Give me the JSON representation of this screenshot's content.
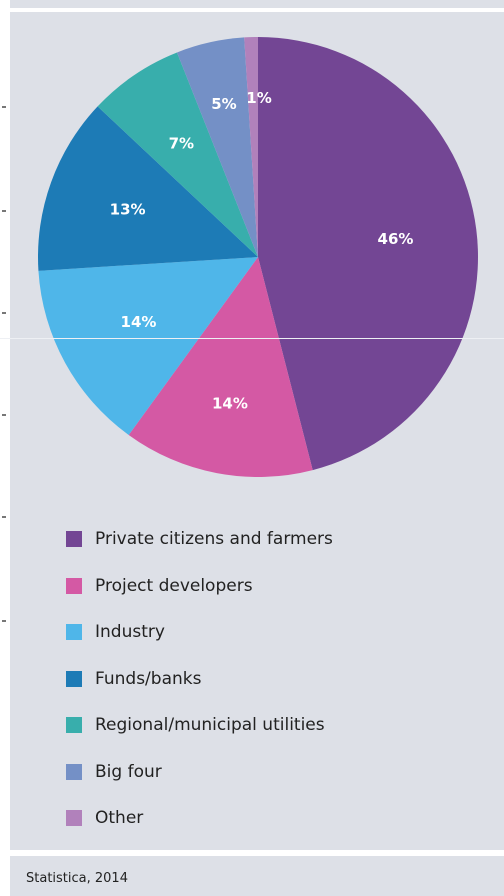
{
  "chart_data": {
    "type": "pie",
    "slices": [
      {
        "label": "Private citizens and farmers",
        "value": 46,
        "value_label": "46%",
        "color": "#734694"
      },
      {
        "label": "Project developers",
        "value": 14,
        "value_label": "14%",
        "color": "#d459a4"
      },
      {
        "label": "Industry",
        "value": 14,
        "value_label": "14%",
        "color": "#4fb6e9"
      },
      {
        "label": "Funds/banks",
        "value": 13,
        "value_label": "13%",
        "color": "#1d7bb6"
      },
      {
        "label": "Regional/municipal utilities",
        "value": 7,
        "value_label": "7%",
        "color": "#38aeac"
      },
      {
        "label": "Big four",
        "value": 5,
        "value_label": "5%",
        "color": "#7490c6"
      },
      {
        "label": "Other",
        "value": 1,
        "value_label": "1%",
        "color": "#b181bb"
      }
    ],
    "legend_position": "bottom"
  },
  "source": "Statistica, 2014"
}
